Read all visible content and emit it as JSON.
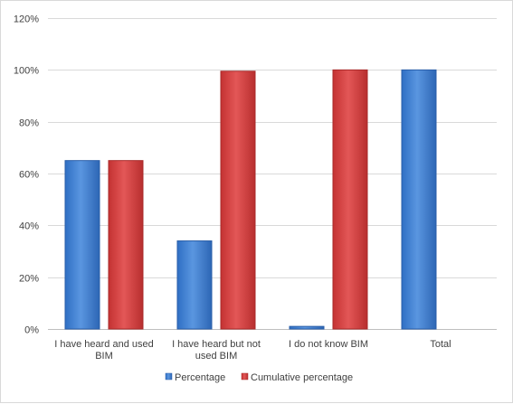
{
  "chart_data": {
    "type": "bar",
    "categories": [
      [
        "I have heard and used",
        "BIM"
      ],
      [
        "I have heard but not",
        "used BIM"
      ],
      [
        "I do not know BIM"
      ],
      [
        "Total"
      ]
    ],
    "series": [
      {
        "name": "Percentage",
        "values": [
          65,
          34,
          1,
          100
        ],
        "color": "#4a86d4"
      },
      {
        "name": "Cumulative percentage",
        "values": [
          65,
          99.5,
          100,
          null
        ],
        "color": "#d94545"
      }
    ],
    "y_ticks": [
      "0%",
      "20%",
      "40%",
      "60%",
      "80%",
      "100%",
      "120%"
    ],
    "ylim": [
      0,
      120
    ],
    "grid": true,
    "legend_position": "bottom"
  }
}
